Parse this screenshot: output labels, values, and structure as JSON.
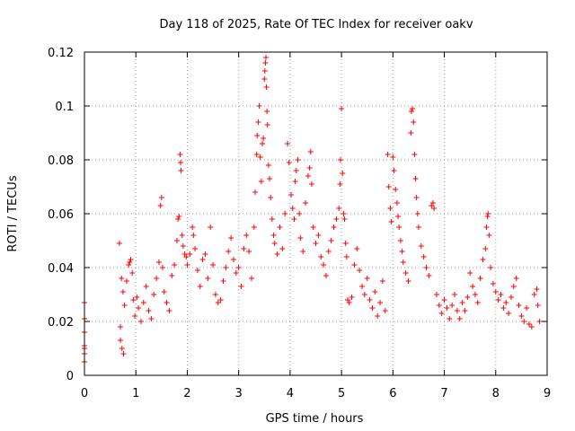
{
  "chart_data": {
    "type": "scatter",
    "title": "Day 118 of 2025, Rate Of TEC Index for receiver oakv",
    "xlabel": "GPS time / hours",
    "ylabel": "ROTI / TECUs",
    "xlim": [
      0,
      9
    ],
    "ylim": [
      0,
      0.12
    ],
    "xticks": [
      0,
      1,
      2,
      3,
      4,
      5,
      6,
      7,
      8,
      9
    ],
    "xtick_labels": [
      "0",
      "1",
      "2",
      "3",
      "4",
      "5",
      "6",
      "7",
      "8",
      "9"
    ],
    "yticks": [
      0,
      0.02,
      0.04,
      0.06,
      0.08,
      0.1,
      0.12
    ],
    "ytick_labels": [
      "0",
      "0.02",
      "0.04",
      "0.06",
      "0.08",
      "0.1",
      "0.12"
    ],
    "grid": true,
    "marker": "plus",
    "color": "#ff0000",
    "series": [
      {
        "name": "ROTI",
        "points": [
          [
            0.0,
            0.027
          ],
          [
            0.0,
            0.021
          ],
          [
            0.0,
            0.016
          ],
          [
            0.0,
            0.011
          ],
          [
            0.0,
            0.01
          ],
          [
            0.0,
            0.008
          ],
          [
            0.0,
            0.005
          ],
          [
            0.68,
            0.049
          ],
          [
            0.72,
            0.036
          ],
          [
            0.75,
            0.031
          ],
          [
            0.78,
            0.026
          ],
          [
            0.7,
            0.018
          ],
          [
            0.7,
            0.013
          ],
          [
            0.73,
            0.01
          ],
          [
            0.76,
            0.008
          ],
          [
            0.82,
            0.035
          ],
          [
            0.86,
            0.041
          ],
          [
            0.88,
            0.042
          ],
          [
            0.9,
            0.043
          ],
          [
            0.93,
            0.038
          ],
          [
            0.95,
            0.028
          ],
          [
            0.98,
            0.022
          ],
          [
            1.02,
            0.029
          ],
          [
            1.05,
            0.025
          ],
          [
            1.1,
            0.02
          ],
          [
            1.15,
            0.027
          ],
          [
            1.2,
            0.033
          ],
          [
            1.25,
            0.024
          ],
          [
            1.3,
            0.021
          ],
          [
            1.35,
            0.03
          ],
          [
            1.4,
            0.036
          ],
          [
            1.45,
            0.042
          ],
          [
            1.5,
            0.066
          ],
          [
            1.48,
            0.063
          ],
          [
            1.52,
            0.04
          ],
          [
            1.55,
            0.031
          ],
          [
            1.6,
            0.027
          ],
          [
            1.65,
            0.024
          ],
          [
            1.7,
            0.037
          ],
          [
            1.75,
            0.041
          ],
          [
            1.8,
            0.05
          ],
          [
            1.82,
            0.058
          ],
          [
            1.84,
            0.059
          ],
          [
            1.86,
            0.082
          ],
          [
            1.87,
            0.079
          ],
          [
            1.88,
            0.076
          ],
          [
            1.9,
            0.052
          ],
          [
            1.92,
            0.048
          ],
          [
            1.95,
            0.045
          ],
          [
            1.98,
            0.044
          ],
          [
            2.0,
            0.041
          ],
          [
            2.05,
            0.045
          ],
          [
            2.1,
            0.055
          ],
          [
            2.12,
            0.052
          ],
          [
            2.15,
            0.047
          ],
          [
            2.2,
            0.039
          ],
          [
            2.25,
            0.033
          ],
          [
            2.3,
            0.043
          ],
          [
            2.35,
            0.045
          ],
          [
            2.4,
            0.036
          ],
          [
            2.45,
            0.055
          ],
          [
            2.5,
            0.041
          ],
          [
            2.55,
            0.03
          ],
          [
            2.6,
            0.027
          ],
          [
            2.65,
            0.028
          ],
          [
            2.7,
            0.035
          ],
          [
            2.75,
            0.04
          ],
          [
            2.8,
            0.046
          ],
          [
            2.85,
            0.051
          ],
          [
            2.9,
            0.043
          ],
          [
            2.95,
            0.038
          ],
          [
            3.0,
            0.04
          ],
          [
            3.05,
            0.033
          ],
          [
            3.1,
            0.047
          ],
          [
            3.15,
            0.052
          ],
          [
            3.2,
            0.046
          ],
          [
            3.25,
            0.036
          ],
          [
            3.3,
            0.055
          ],
          [
            3.32,
            0.068
          ],
          [
            3.35,
            0.082
          ],
          [
            3.36,
            0.089
          ],
          [
            3.38,
            0.094
          ],
          [
            3.4,
            0.1
          ],
          [
            3.42,
            0.081
          ],
          [
            3.44,
            0.072
          ],
          [
            3.46,
            0.086
          ],
          [
            3.48,
            0.088
          ],
          [
            3.5,
            0.11
          ],
          [
            3.51,
            0.113
          ],
          [
            3.52,
            0.116
          ],
          [
            3.53,
            0.118
          ],
          [
            3.54,
            0.107
          ],
          [
            3.55,
            0.098
          ],
          [
            3.56,
            0.093
          ],
          [
            3.58,
            0.078
          ],
          [
            3.6,
            0.073
          ],
          [
            3.62,
            0.066
          ],
          [
            3.65,
            0.058
          ],
          [
            3.68,
            0.052
          ],
          [
            3.7,
            0.049
          ],
          [
            3.75,
            0.045
          ],
          [
            3.8,
            0.055
          ],
          [
            3.85,
            0.047
          ],
          [
            3.9,
            0.06
          ],
          [
            3.95,
            0.086
          ],
          [
            3.98,
            0.079
          ],
          [
            4.02,
            0.067
          ],
          [
            4.05,
            0.062
          ],
          [
            4.08,
            0.058
          ],
          [
            4.1,
            0.072
          ],
          [
            4.12,
            0.076
          ],
          [
            4.15,
            0.08
          ],
          [
            4.18,
            0.06
          ],
          [
            4.2,
            0.051
          ],
          [
            4.25,
            0.046
          ],
          [
            4.3,
            0.064
          ],
          [
            4.35,
            0.074
          ],
          [
            4.38,
            0.077
          ],
          [
            4.4,
            0.083
          ],
          [
            4.42,
            0.071
          ],
          [
            4.45,
            0.055
          ],
          [
            4.5,
            0.049
          ],
          [
            4.55,
            0.052
          ],
          [
            4.6,
            0.044
          ],
          [
            4.65,
            0.041
          ],
          [
            4.7,
            0.037
          ],
          [
            4.75,
            0.046
          ],
          [
            4.8,
            0.05
          ],
          [
            4.85,
            0.055
          ],
          [
            4.9,
            0.058
          ],
          [
            4.95,
            0.062
          ],
          [
            4.97,
            0.071
          ],
          [
            4.98,
            0.08
          ],
          [
            5.0,
            0.099
          ],
          [
            5.02,
            0.075
          ],
          [
            5.04,
            0.06
          ],
          [
            5.06,
            0.058
          ],
          [
            5.08,
            0.049
          ],
          [
            5.1,
            0.044
          ],
          [
            5.12,
            0.028
          ],
          [
            5.15,
            0.027
          ],
          [
            5.2,
            0.029
          ],
          [
            5.25,
            0.041
          ],
          [
            5.3,
            0.047
          ],
          [
            5.35,
            0.039
          ],
          [
            5.4,
            0.033
          ],
          [
            5.45,
            0.03
          ],
          [
            5.5,
            0.036
          ],
          [
            5.55,
            0.028
          ],
          [
            5.6,
            0.025
          ],
          [
            5.65,
            0.031
          ],
          [
            5.7,
            0.022
          ],
          [
            5.75,
            0.027
          ],
          [
            5.8,
            0.035
          ],
          [
            5.85,
            0.024
          ],
          [
            5.9,
            0.082
          ],
          [
            5.92,
            0.07
          ],
          [
            5.95,
            0.062
          ],
          [
            5.97,
            0.057
          ],
          [
            6.0,
            0.081
          ],
          [
            6.02,
            0.076
          ],
          [
            6.05,
            0.069
          ],
          [
            6.08,
            0.064
          ],
          [
            6.1,
            0.059
          ],
          [
            6.12,
            0.055
          ],
          [
            6.15,
            0.05
          ],
          [
            6.18,
            0.046
          ],
          [
            6.2,
            0.042
          ],
          [
            6.25,
            0.038
          ],
          [
            6.3,
            0.035
          ],
          [
            6.35,
            0.09
          ],
          [
            6.36,
            0.098
          ],
          [
            6.38,
            0.099
          ],
          [
            6.4,
            0.094
          ],
          [
            6.42,
            0.082
          ],
          [
            6.44,
            0.073
          ],
          [
            6.46,
            0.066
          ],
          [
            6.48,
            0.06
          ],
          [
            6.5,
            0.055
          ],
          [
            6.55,
            0.048
          ],
          [
            6.6,
            0.044
          ],
          [
            6.65,
            0.04
          ],
          [
            6.7,
            0.037
          ],
          [
            6.75,
            0.063
          ],
          [
            6.78,
            0.064
          ],
          [
            6.8,
            0.062
          ],
          [
            6.85,
            0.03
          ],
          [
            6.9,
            0.026
          ],
          [
            6.95,
            0.023
          ],
          [
            7.0,
            0.028
          ],
          [
            7.05,
            0.025
          ],
          [
            7.1,
            0.021
          ],
          [
            7.15,
            0.026
          ],
          [
            7.2,
            0.03
          ],
          [
            7.25,
            0.024
          ],
          [
            7.3,
            0.021
          ],
          [
            7.35,
            0.027
          ],
          [
            7.4,
            0.024
          ],
          [
            7.45,
            0.029
          ],
          [
            7.5,
            0.038
          ],
          [
            7.55,
            0.033
          ],
          [
            7.6,
            0.03
          ],
          [
            7.65,
            0.027
          ],
          [
            7.7,
            0.036
          ],
          [
            7.75,
            0.043
          ],
          [
            7.8,
            0.047
          ],
          [
            7.82,
            0.055
          ],
          [
            7.84,
            0.059
          ],
          [
            7.85,
            0.06
          ],
          [
            7.87,
            0.052
          ],
          [
            7.9,
            0.04
          ],
          [
            7.95,
            0.034
          ],
          [
            8.0,
            0.031
          ],
          [
            8.05,
            0.028
          ],
          [
            8.1,
            0.03
          ],
          [
            8.15,
            0.025
          ],
          [
            8.2,
            0.027
          ],
          [
            8.25,
            0.023
          ],
          [
            8.3,
            0.029
          ],
          [
            8.35,
            0.033
          ],
          [
            8.4,
            0.036
          ],
          [
            8.45,
            0.026
          ],
          [
            8.5,
            0.022
          ],
          [
            8.55,
            0.02
          ],
          [
            8.6,
            0.025
          ],
          [
            8.65,
            0.019
          ],
          [
            8.7,
            0.018
          ],
          [
            8.75,
            0.03
          ],
          [
            8.8,
            0.032
          ],
          [
            8.82,
            0.026
          ],
          [
            8.85,
            0.02
          ]
        ]
      }
    ]
  }
}
